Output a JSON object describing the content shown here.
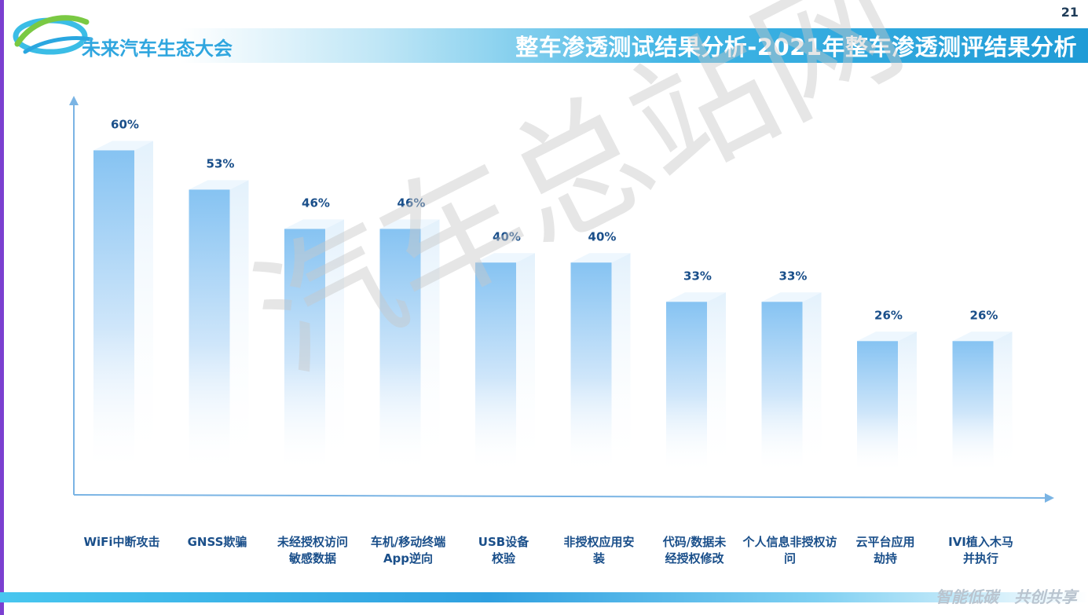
{
  "brand": {
    "name": "未来汽车生态大会"
  },
  "page_number": "21",
  "header": {
    "title": "整车渗透测试结果分析-2021年整车渗透测评结果分析"
  },
  "watermark": "汽车总站网",
  "footer": {
    "slogan": "智能低碳　共创共享"
  },
  "colors": {
    "bar": "#8cc8f4",
    "axis": "#7ab4e4",
    "title_band": "#2aa7e0",
    "label": "#1a4f8a"
  },
  "chart_data": {
    "type": "bar",
    "categories": [
      "WiFi中断攻击",
      "GNSS欺骗",
      "未经授权访问敏感数据",
      "车机/移动终端App逆向",
      "USB设备校验",
      "非授权应用安装",
      "代码/数据未经授权修改",
      "个人信息非授权访问",
      "云平台应用劫持",
      "IVI植入木马并执行"
    ],
    "category_lines": [
      [
        "WiFi中断攻击"
      ],
      [
        "GNSS欺骗"
      ],
      [
        "未经授权访问",
        "敏感数据"
      ],
      [
        "车机/移动终端",
        "App逆向"
      ],
      [
        "USB设备",
        "校验"
      ],
      [
        "非授权应用安",
        "装"
      ],
      [
        "代码/数据未",
        "经授权修改"
      ],
      [
        "个人信息非授权访",
        "问"
      ],
      [
        "云平台应用",
        "劫持"
      ],
      [
        "IVI植入木马",
        "并执行"
      ]
    ],
    "values": [
      60,
      53,
      46,
      46,
      40,
      40,
      33,
      33,
      26,
      26
    ],
    "value_labels": [
      "60%",
      "53%",
      "46%",
      "46%",
      "40%",
      "40%",
      "33%",
      "33%",
      "26%",
      "26%"
    ],
    "unit": "%",
    "ylim": [
      0,
      70
    ],
    "grid": false,
    "legend": "none",
    "title": "",
    "xlabel": "",
    "ylabel": ""
  }
}
